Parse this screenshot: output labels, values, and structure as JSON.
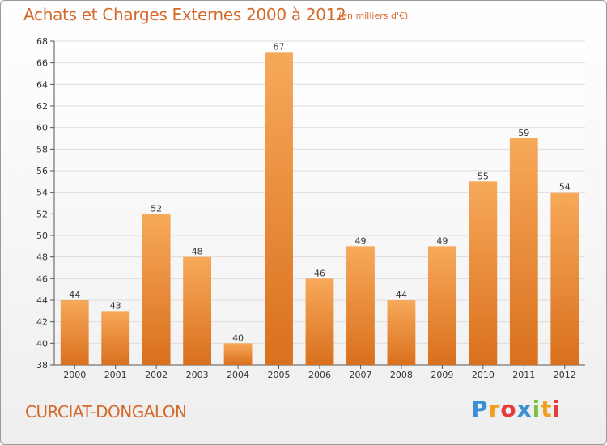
{
  "title": "Achats et Charges Externes 2000 à 2012",
  "subtitle": "(en milliers d'€)",
  "commune": "CURCIAT-DONGALON",
  "brand": {
    "letters": [
      "P",
      "r",
      "o",
      "x",
      "i",
      "t",
      "i"
    ],
    "colors": [
      "#3a8fd6",
      "#f0a020",
      "#e83b3b",
      "#3a8fd6",
      "#7cc142",
      "#f0a020",
      "#e83b3b"
    ]
  },
  "colors": {
    "text": "#d4692a",
    "bar_top": "#f7a95a",
    "bar_bottom": "#d9701d",
    "grid": "#dddddd"
  },
  "chart_data": {
    "type": "bar",
    "title": "Achats et Charges Externes 2000 à 2012",
    "subtitle": "(en milliers d'€)",
    "xlabel": "",
    "ylabel": "",
    "categories": [
      "2000",
      "2001",
      "2002",
      "2003",
      "2004",
      "2005",
      "2006",
      "2007",
      "2008",
      "2009",
      "2010",
      "2011",
      "2012"
    ],
    "values": [
      44,
      43,
      52,
      48,
      40,
      67,
      46,
      49,
      44,
      49,
      55,
      59,
      54
    ],
    "ylim": [
      38,
      68
    ],
    "yticks": [
      "38",
      "40",
      "42",
      "44",
      "46",
      "48",
      "50",
      "52",
      "54",
      "56",
      "58",
      "60",
      "62",
      "64",
      "66",
      "68"
    ],
    "grid": true,
    "data_labels": true
  }
}
